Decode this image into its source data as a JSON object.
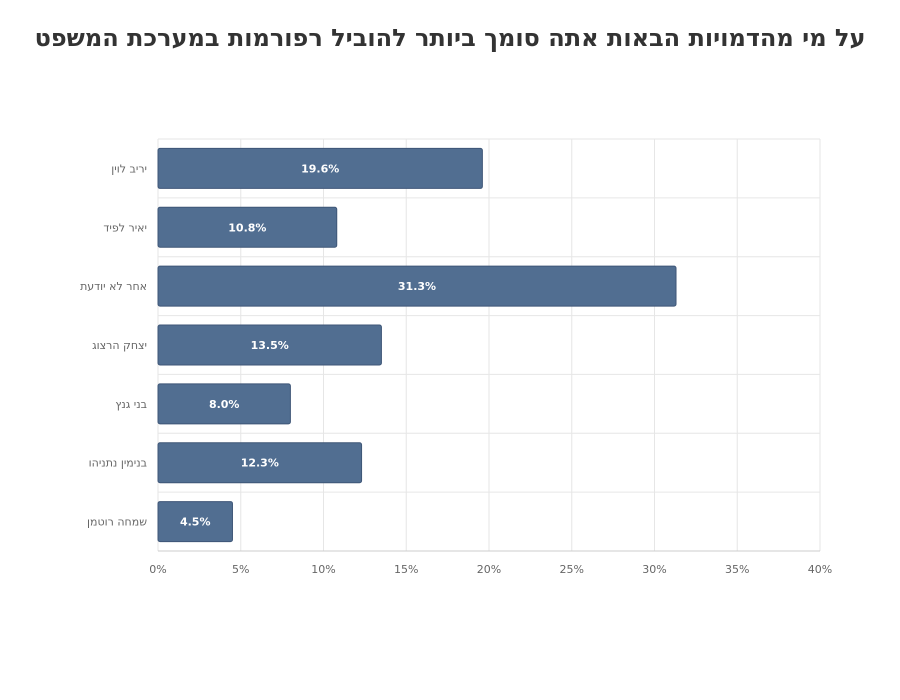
{
  "chart_data": {
    "type": "bar",
    "orientation": "horizontal",
    "title": "על מי מהדמויות הבאות אתה סומך ביותר להוביל רפורמות במערכת המשפט",
    "categories": [
      "יריב לוין",
      "יאיר לפיד",
      "אחר  לא יודעת",
      "יצחק הרצוג",
      "בני גנץ",
      "בנימין נתניהו",
      "שמחה רוטמן"
    ],
    "values": [
      19.6,
      10.8,
      31.3,
      13.5,
      8.0,
      12.3,
      4.5
    ],
    "data_labels": [
      "19.6%",
      "10.8%",
      "31.3%",
      "13.5%",
      "8.0%",
      "12.3%",
      "4.5%"
    ],
    "xlim": [
      0,
      40
    ],
    "xticks": [
      0,
      5,
      10,
      15,
      20,
      25,
      30,
      35,
      40
    ],
    "xtick_labels": [
      "0%",
      "5%",
      "10%",
      "15%",
      "20%",
      "25%",
      "30%",
      "35%",
      "40%"
    ],
    "xlabel": "",
    "ylabel": "",
    "grid": true,
    "legend": "none",
    "bar_color": "#516e91",
    "grid_color": "#e6e6e6"
  }
}
